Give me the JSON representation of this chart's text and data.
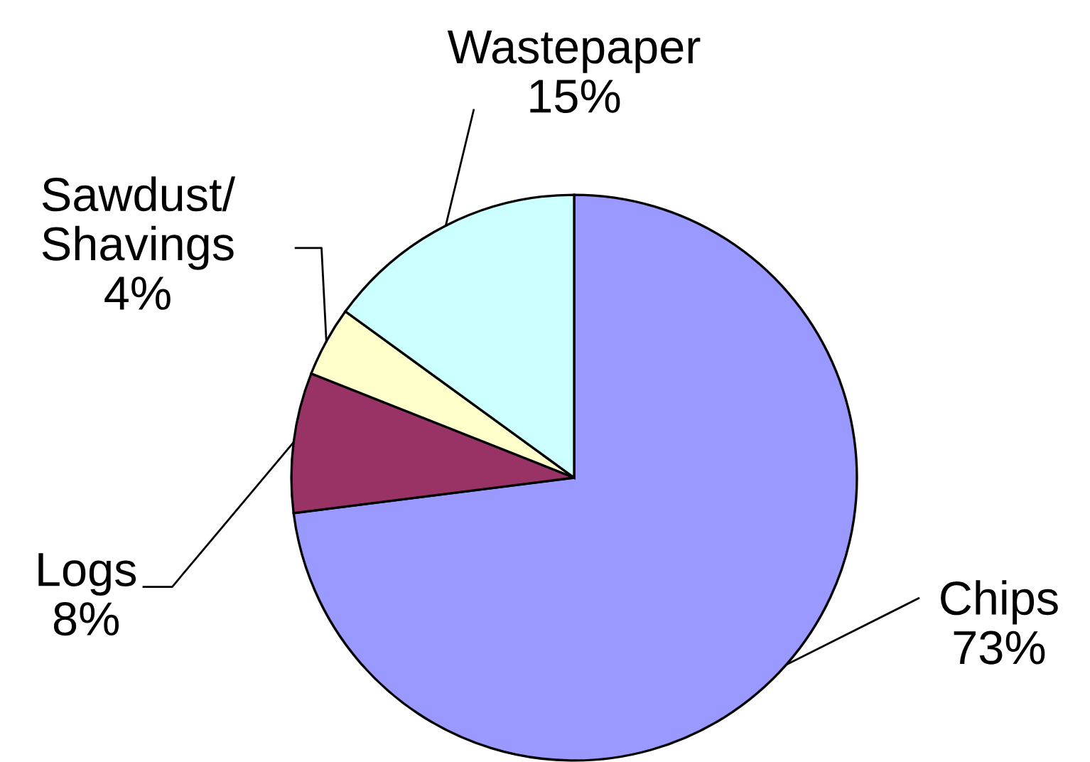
{
  "chart_data": {
    "type": "pie",
    "categories": [
      "Chips",
      "Logs",
      "Sawdust/\nShavings",
      "Wastepaper"
    ],
    "values": [
      73,
      8,
      4,
      15
    ],
    "value_labels": [
      "73%",
      "8%",
      "4%",
      "15%"
    ],
    "colors": [
      "#9999ff",
      "#993366",
      "#ffffcc",
      "#ccffff"
    ],
    "legend": false
  }
}
